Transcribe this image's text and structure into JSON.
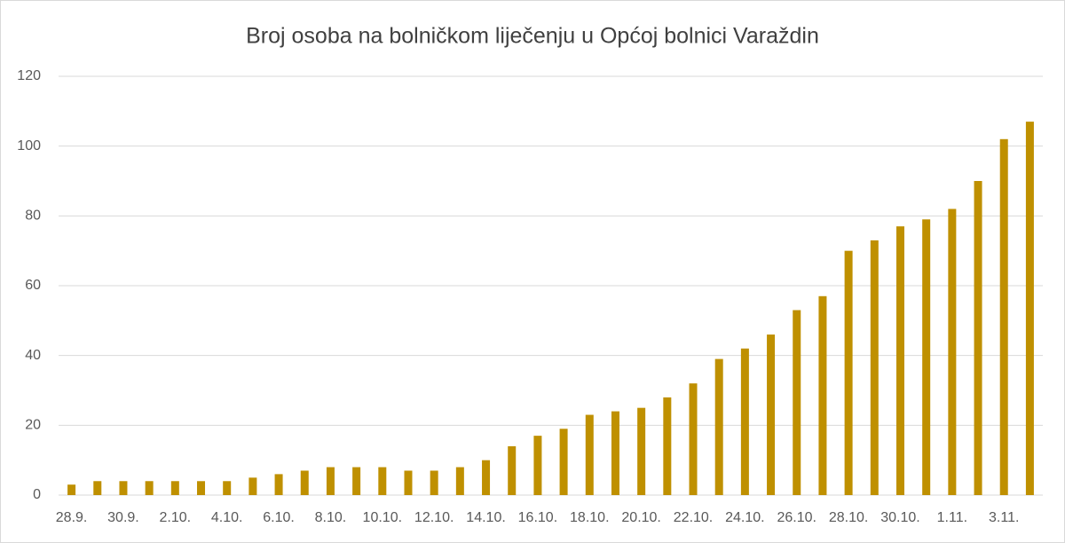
{
  "chart_data": {
    "type": "bar",
    "title": "Broj osoba na bolničkom liječenju u Općoj bolnici Varaždin",
    "categories": [
      "28.9.",
      null,
      "30.9.",
      null,
      "2.10.",
      null,
      "4.10.",
      null,
      "6.10.",
      null,
      "8.10.",
      null,
      "10.10.",
      null,
      "12.10.",
      null,
      "14.10.",
      null,
      "16.10.",
      null,
      "18.10.",
      null,
      "20.10.",
      null,
      "22.10.",
      null,
      "24.10.",
      null,
      "26.10.",
      null,
      "28.10.",
      null,
      "30.10.",
      null,
      "1.11.",
      null,
      "3.11.",
      null
    ],
    "values": [
      3,
      4,
      4,
      4,
      4,
      4,
      4,
      5,
      6,
      7,
      8,
      8,
      8,
      7,
      7,
      8,
      10,
      14,
      17,
      19,
      23,
      24,
      25,
      28,
      32,
      39,
      42,
      46,
      53,
      57,
      70,
      73,
      77,
      79,
      82,
      90,
      102,
      107
    ],
    "color": "#bf9000",
    "ylim": [
      0,
      120
    ],
    "yticks": [
      0,
      20,
      40,
      60,
      80,
      100,
      120
    ],
    "grid": true
  }
}
